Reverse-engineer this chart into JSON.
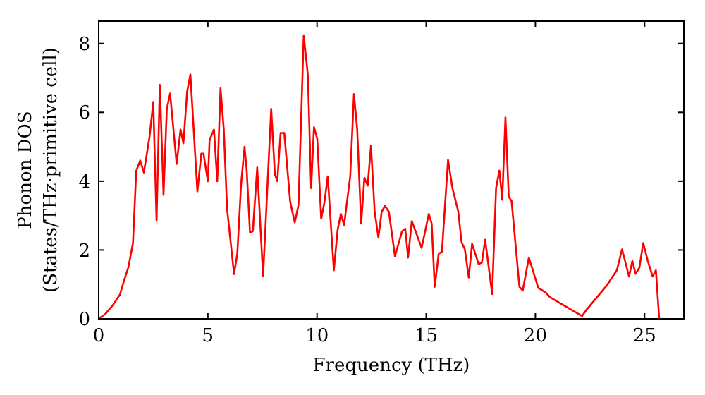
{
  "chart_data": {
    "type": "line",
    "xlabel": "Frequency (THz)",
    "ylabel": "Phonon DOS\n(States/THz·primitive cell)",
    "xlim": [
      0,
      26.8
    ],
    "ylim": [
      0,
      8.65
    ],
    "xticks": [
      0,
      5,
      10,
      15,
      20,
      25
    ],
    "yticks": [
      0,
      2,
      4,
      6,
      8
    ],
    "grid": false,
    "line_style": "solid",
    "marker": "none",
    "series": [
      {
        "color": "#ff0000",
        "x": [
          0,
          0.32,
          0.65,
          0.97,
          1.18,
          1.36,
          1.57,
          1.72,
          1.9,
          2.07,
          2.33,
          2.5,
          2.65,
          2.8,
          2.97,
          3.12,
          3.27,
          3.57,
          3.75,
          3.88,
          4.05,
          4.2,
          4.52,
          4.7,
          4.8,
          5.0,
          5.08,
          5.28,
          5.43,
          5.58,
          5.73,
          5.88,
          6.2,
          6.35,
          6.52,
          6.68,
          6.78,
          6.93,
          7.06,
          7.26,
          7.53,
          7.9,
          8.07,
          8.18,
          8.33,
          8.5,
          8.77,
          8.98,
          9.15,
          9.39,
          9.58,
          9.73,
          9.86,
          10.01,
          10.19,
          10.34,
          10.49,
          10.77,
          10.94,
          11.09,
          11.24,
          11.52,
          11.69,
          11.84,
          12.02,
          12.17,
          12.32,
          12.47,
          12.64,
          12.81,
          12.96,
          13.11,
          13.29,
          13.57,
          13.89,
          14.04,
          14.17,
          14.34,
          14.64,
          14.79,
          15.12,
          15.25,
          15.39,
          15.57,
          15.72,
          16.0,
          16.2,
          16.47,
          16.62,
          16.77,
          16.95,
          17.1,
          17.4,
          17.55,
          17.7,
          18.02,
          18.2,
          18.35,
          18.48,
          18.63,
          18.78,
          18.91,
          19.27,
          19.42,
          19.7,
          19.85,
          20.13,
          20.46,
          20.67,
          22.14,
          22.35,
          23.26,
          23.54,
          23.73,
          23.97,
          24.29,
          24.44,
          24.59,
          24.76,
          24.94,
          25.15,
          25.37,
          25.52,
          25.67
        ],
        "values": [
          0,
          0.15,
          0.4,
          0.7,
          1.15,
          1.5,
          2.2,
          4.3,
          4.6,
          4.25,
          5.3,
          6.3,
          2.85,
          6.8,
          3.6,
          6.1,
          6.55,
          4.5,
          5.5,
          5.1,
          6.6,
          7.1,
          3.7,
          4.8,
          4.8,
          4.0,
          5.2,
          5.5,
          4.0,
          6.7,
          5.5,
          3.2,
          1.3,
          1.9,
          3.9,
          5.0,
          4.3,
          2.5,
          2.55,
          4.4,
          1.25,
          6.1,
          4.2,
          4.0,
          5.4,
          5.4,
          3.4,
          2.8,
          3.3,
          8.24,
          7.08,
          3.8,
          5.57,
          5.23,
          2.91,
          3.39,
          4.14,
          1.41,
          2.57,
          3.05,
          2.73,
          4.14,
          6.53,
          5.5,
          2.77,
          4.1,
          3.87,
          5.03,
          3.11,
          2.36,
          3.11,
          3.28,
          3.11,
          1.82,
          2.54,
          2.62,
          1.78,
          2.84,
          2.32,
          2.06,
          3.05,
          2.77,
          0.93,
          1.89,
          1.95,
          4.62,
          3.8,
          3.11,
          2.23,
          2.02,
          1.2,
          2.18,
          1.59,
          1.64,
          2.3,
          0.72,
          3.8,
          4.31,
          3.46,
          5.85,
          3.55,
          3.42,
          0.93,
          0.82,
          1.78,
          1.48,
          0.9,
          0.77,
          0.63,
          0.08,
          0.27,
          0.96,
          1.23,
          1.41,
          2.02,
          1.23,
          1.68,
          1.31,
          1.48,
          2.2,
          1.68,
          1.23,
          1.41,
          0
        ]
      }
    ]
  }
}
